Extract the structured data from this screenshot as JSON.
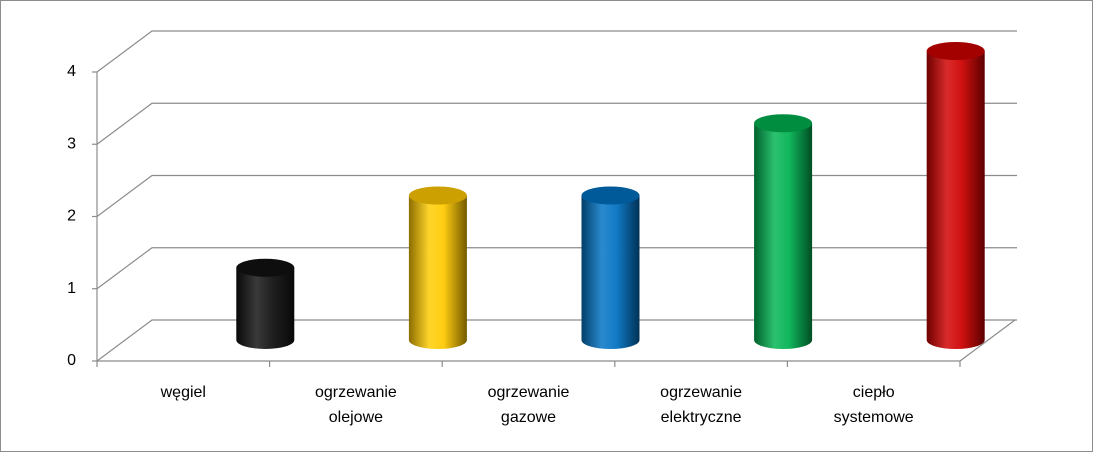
{
  "chart_data": {
    "type": "bar",
    "categories": [
      "węgiel",
      "ogrzewanie olejowe",
      "ogrzewanie gazowe",
      "ogrzewanie elektryczne",
      "ciepło systemowe"
    ],
    "values": [
      1,
      2,
      2,
      3,
      4
    ],
    "colors": [
      "#111111",
      "#ffc800",
      "#0070c0",
      "#00b050",
      "#cc0000"
    ],
    "ylim": [
      0,
      4
    ],
    "yticks": [
      0,
      1,
      2,
      3,
      4
    ],
    "grid": true
  }
}
